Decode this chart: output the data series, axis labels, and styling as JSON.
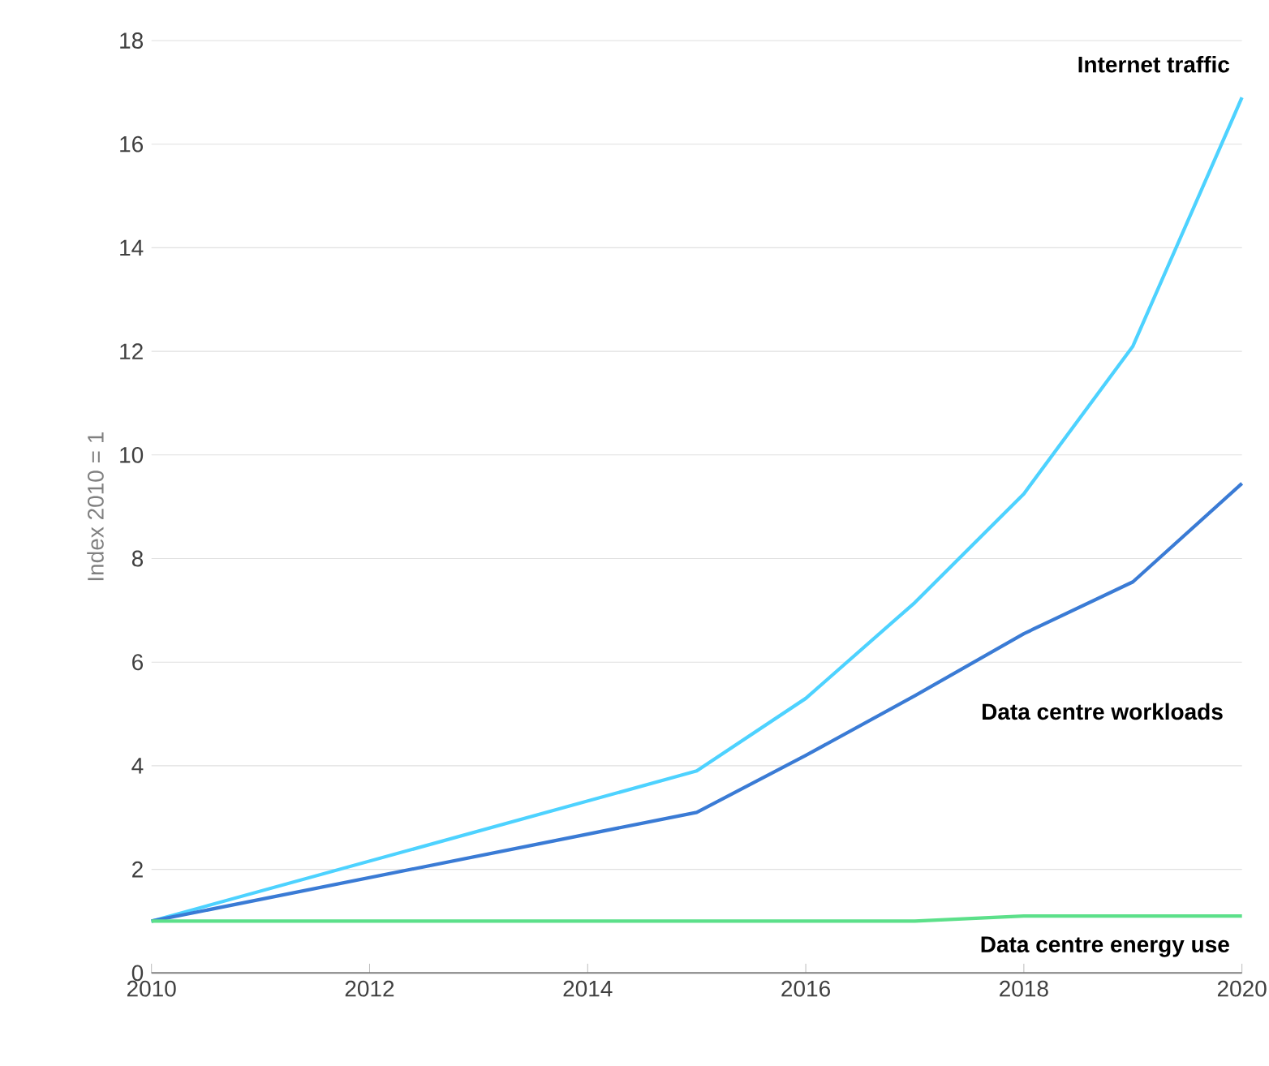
{
  "chart_data": {
    "type": "line",
    "ylabel": "Index 2010 = 1",
    "x": [
      2010,
      2015,
      2016,
      2017,
      2018,
      2019,
      2020
    ],
    "series": [
      {
        "name": "Internet traffic",
        "color": "#4dd2ff",
        "values": [
          1,
          3.9,
          5.3,
          7.15,
          9.25,
          12.1,
          16.9
        ]
      },
      {
        "name": "Data centre workloads",
        "color": "#3a7bd5",
        "values": [
          1,
          3.1,
          4.2,
          5.35,
          6.55,
          7.55,
          9.45
        ]
      },
      {
        "name": "Data centre energy use",
        "color": "#5ce08a",
        "values": [
          1,
          1,
          1,
          1,
          1.1,
          1.1,
          1.1
        ]
      }
    ],
    "xlim": [
      2010,
      2020
    ],
    "ylim": [
      0,
      18
    ],
    "xticks": [
      2010,
      2012,
      2014,
      2016,
      2018,
      2020
    ],
    "yticks": [
      0,
      2,
      4,
      6,
      8,
      10,
      12,
      14,
      16,
      18
    ],
    "grid": "y",
    "marker": "none",
    "line_style": "solid"
  }
}
